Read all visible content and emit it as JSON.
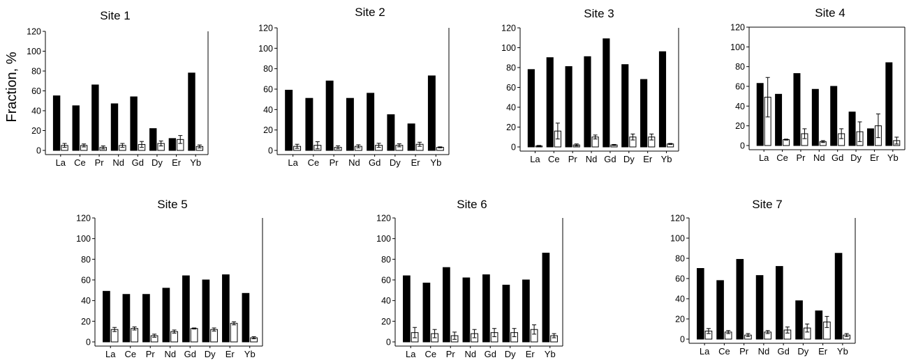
{
  "figure": {
    "ylabel": "Fraction, %"
  },
  "chart_data": [
    {
      "type": "bar",
      "title": "Site 1",
      "categories": [
        "La",
        "Ce",
        "Pr",
        "Nd",
        "Gd",
        "Dy",
        "Er",
        "Yb"
      ],
      "ylim": [
        0,
        120
      ],
      "yticks": [
        0,
        20,
        40,
        60,
        80,
        100,
        120
      ],
      "series": [
        {
          "color": "#000000",
          "values": [
            55,
            45,
            66,
            47,
            54,
            22,
            12,
            78
          ]
        },
        {
          "color": "#ffffff",
          "values": [
            5,
            5,
            3,
            5,
            6,
            7,
            11,
            4
          ],
          "errors": [
            2,
            1.5,
            1.5,
            2,
            3,
            2.5,
            4,
            1.5
          ]
        }
      ]
    },
    {
      "type": "bar",
      "title": "Site 2",
      "categories": [
        "La",
        "Ce",
        "Pr",
        "Nd",
        "Gd",
        "Dy",
        "Er",
        "Yb"
      ],
      "ylim": [
        0,
        120
      ],
      "yticks": [
        0,
        20,
        40,
        60,
        80,
        100,
        120
      ],
      "series": [
        {
          "color": "#000000",
          "values": [
            59,
            51,
            68,
            51,
            56,
            35,
            26,
            73
          ]
        },
        {
          "color": "#ffffff",
          "values": [
            4,
            5,
            3,
            4,
            5,
            5,
            6,
            3
          ],
          "errors": [
            2,
            3.5,
            1.5,
            1.5,
            2,
            1.5,
            2,
            0.5
          ]
        }
      ]
    },
    {
      "type": "bar",
      "title": "Site 3",
      "categories": [
        "La",
        "Ce",
        "Pr",
        "Nd",
        "Gd",
        "Dy",
        "Er",
        "Yb"
      ],
      "ylim": [
        0,
        120
      ],
      "yticks": [
        0,
        20,
        40,
        60,
        80,
        100,
        120
      ],
      "series": [
        {
          "color": "#000000",
          "values": [
            78,
            90,
            81,
            91,
            109,
            83,
            68,
            96
          ]
        },
        {
          "color": "#ffffff",
          "values": [
            1,
            16,
            2,
            10,
            2,
            10,
            10,
            3
          ],
          "errors": [
            0.5,
            8,
            1,
            2,
            0.5,
            3,
            3,
            0.5
          ]
        }
      ]
    },
    {
      "type": "bar",
      "title": "Site 4",
      "categories": [
        "La",
        "Ce",
        "Pr",
        "Nd",
        "Gd",
        "Dy",
        "Er",
        "Yb"
      ],
      "ylim": [
        0,
        120
      ],
      "yticks": [
        0,
        20,
        40,
        60,
        80,
        100,
        120
      ],
      "series": [
        {
          "color": "#000000",
          "values": [
            63,
            52,
            73,
            57,
            60,
            34,
            17,
            84
          ]
        },
        {
          "color": "#ffffff",
          "values": [
            49,
            6,
            12,
            4,
            12,
            14,
            20,
            5
          ],
          "errors": [
            20,
            0.5,
            5,
            1,
            5,
            10,
            12,
            3.5
          ]
        }
      ]
    },
    {
      "type": "bar",
      "title": "Site 5",
      "categories": [
        "La",
        "Ce",
        "Pr",
        "Nd",
        "Gd",
        "Dy",
        "Er",
        "Yb"
      ],
      "ylim": [
        0,
        120
      ],
      "yticks": [
        0,
        20,
        40,
        60,
        80,
        100,
        120
      ],
      "series": [
        {
          "color": "#000000",
          "values": [
            49,
            46,
            46,
            52,
            64,
            60,
            65,
            47
          ]
        },
        {
          "color": "#ffffff",
          "values": [
            12,
            13,
            6,
            10,
            13,
            12,
            18,
            4
          ],
          "errors": [
            2,
            1.5,
            1.5,
            1.5,
            0.5,
            1.5,
            1.5,
            1
          ]
        }
      ]
    },
    {
      "type": "bar",
      "title": "Site 6",
      "categories": [
        "La",
        "Ce",
        "Pr",
        "Nd",
        "Gd",
        "Dy",
        "Er",
        "Yb"
      ],
      "ylim": [
        0,
        120
      ],
      "yticks": [
        0,
        20,
        40,
        60,
        80,
        100,
        120
      ],
      "series": [
        {
          "color": "#000000",
          "values": [
            64,
            57,
            72,
            62,
            65,
            55,
            60,
            86
          ]
        },
        {
          "color": "#ffffff",
          "values": [
            9,
            8,
            6,
            8,
            9,
            9,
            12,
            6
          ],
          "errors": [
            5,
            4,
            3.5,
            4,
            4,
            4,
            4.5,
            2
          ]
        }
      ]
    },
    {
      "type": "bar",
      "title": "Site 7",
      "categories": [
        "La",
        "Ce",
        "Pr",
        "Nd",
        "Gd",
        "Dy",
        "Er",
        "Yb"
      ],
      "ylim": [
        0,
        120
      ],
      "yticks": [
        0,
        20,
        40,
        60,
        80,
        100,
        120
      ],
      "series": [
        {
          "color": "#000000",
          "values": [
            70,
            58,
            79,
            63,
            72,
            38,
            28,
            85
          ]
        },
        {
          "color": "#ffffff",
          "values": [
            8,
            7,
            4,
            7,
            9,
            11,
            17,
            4
          ],
          "errors": [
            2.5,
            1.5,
            1.5,
            1.5,
            3,
            4,
            5.5,
            1.5
          ]
        }
      ]
    }
  ]
}
